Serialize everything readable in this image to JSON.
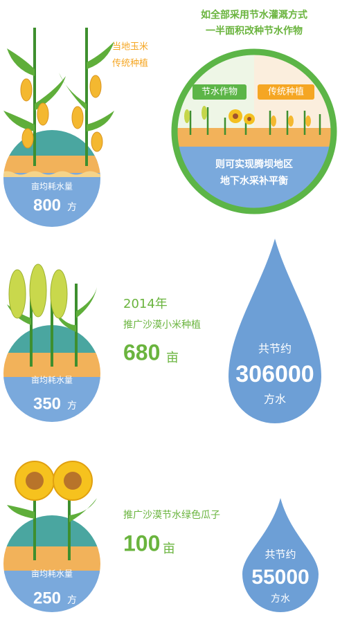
{
  "sections": [
    {
      "crop": [
        "当地玉米",
        "传统种植"
      ],
      "usage": {
        "label": "亩均耗水量",
        "value": 800,
        "unit": "方"
      },
      "plan": {
        "lines": [
          "如全部采用节水灌溉方式",
          "一半面积改种节水作物"
        ],
        "tags": [
          "节水作物",
          "传统种植"
        ],
        "outcome": [
          "则可实现腾坝地区",
          "地下水采补平衡"
        ]
      }
    },
    {
      "year": "2014年",
      "crop": "推广沙漠小米种植",
      "area": {
        "value": 680,
        "unit": "亩"
      },
      "usage": {
        "label": "亩均耗水量",
        "value": 350,
        "unit": "方"
      },
      "saving": {
        "label": "共节约",
        "value": 306000,
        "unit": "方水"
      }
    },
    {
      "crop": "推广沙漠节水绿色瓜子",
      "area": {
        "value": 100,
        "unit": "亩"
      },
      "usage": {
        "label": "亩均耗水量",
        "value": 250,
        "unit": "方"
      },
      "saving": {
        "label": "共节约",
        "value": 55000,
        "unit": "方水"
      }
    }
  ]
}
